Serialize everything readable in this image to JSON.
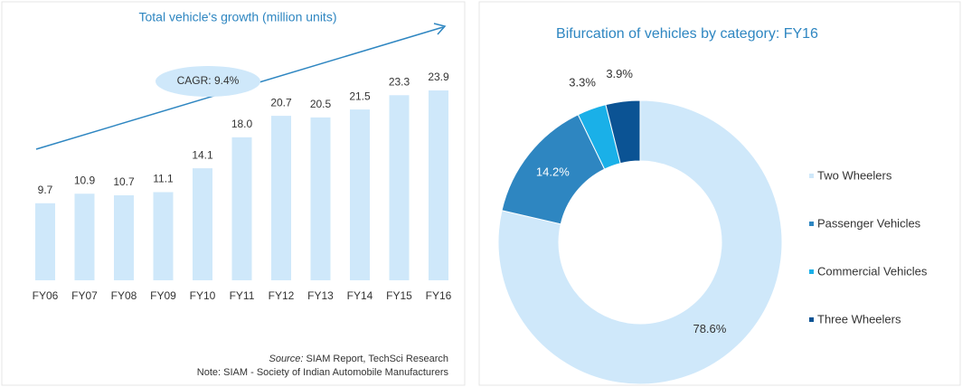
{
  "chart_data": [
    {
      "type": "bar",
      "title": "Total vehicle's growth (million units)",
      "categories": [
        "FY06",
        "FY07",
        "FY08",
        "FY09",
        "FY10",
        "FY11",
        "FY12",
        "FY13",
        "FY14",
        "FY15",
        "FY16"
      ],
      "values": [
        9.7,
        10.9,
        10.7,
        11.1,
        14.1,
        18.0,
        20.7,
        20.5,
        21.5,
        23.3,
        23.9
      ],
      "value_labels": [
        "9.7",
        "10.9",
        "10.7",
        "11.1",
        "14.1",
        "18.0",
        "20.7",
        "20.5",
        "21.5",
        "23.3",
        "23.9"
      ],
      "color": "#cfe8fa",
      "annotation": "CAGR: 9.4%",
      "source_label": "Source:",
      "source": "SIAM Report, TechSci Research",
      "note": "Note: SIAM - Society of Indian Automobile Manufacturers"
    },
    {
      "type": "donut",
      "title": "Bifurcation of vehicles by category: FY16",
      "categories": [
        "Two Wheelers",
        "Passenger Vehicles",
        "Commercial Vehicles",
        "Three Wheelers"
      ],
      "values": [
        78.6,
        14.2,
        3.3,
        3.9
      ],
      "value_labels": [
        "78.6%",
        "14.2%",
        "3.3%",
        "3.9%"
      ],
      "colors": [
        "#cfe8fa",
        "#2e86c1",
        "#1ab0e8",
        "#0b5394"
      ]
    }
  ]
}
